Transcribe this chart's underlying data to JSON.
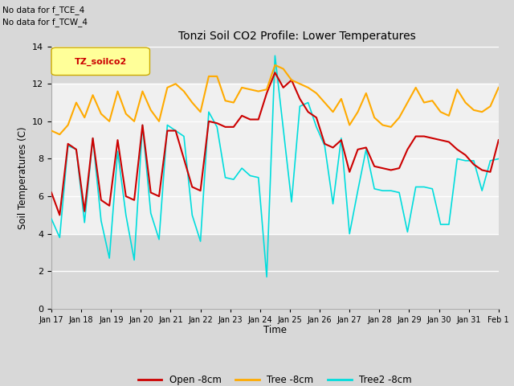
{
  "title": "Tonzi Soil CO2 Profile: Lower Temperatures",
  "ylabel": "Soil Temperatures (C)",
  "xlabel": "Time",
  "no_data_text": [
    "No data for f_TCE_4",
    "No data for f_TCW_4"
  ],
  "legend_label": "TZ_soilco2",
  "ylim": [
    0,
    14
  ],
  "yticks": [
    0,
    2,
    4,
    6,
    8,
    10,
    12,
    14
  ],
  "fig_bg_color": "#d8d8d8",
  "plot_bg_color": "#d8d8d8",
  "band_white_color": "#f0f0f0",
  "line_colors": {
    "open": "#cc0000",
    "tree": "#ffaa00",
    "tree2": "#00dddd"
  },
  "legend_lines": [
    {
      "label": "Open -8cm",
      "color": "#cc0000"
    },
    {
      "label": "Tree -8cm",
      "color": "#ffaa00"
    },
    {
      "label": "Tree2 -8cm",
      "color": "#00dddd"
    }
  ],
  "x_tick_labels": [
    "Jan 17",
    "Jan 18",
    "Jan 19",
    "Jan 20",
    "Jan 21",
    "Jan 22",
    "Jan 23",
    "Jan 24",
    "Jan 25",
    "Jan 26",
    "Jan 27",
    "Jan 28",
    "Jan 29",
    "Jan 30",
    "Jan 31",
    "Feb 1"
  ],
  "open_data": [
    6.2,
    5.0,
    8.8,
    8.5,
    5.2,
    9.1,
    5.8,
    5.5,
    9.0,
    6.0,
    5.8,
    9.8,
    6.2,
    6.0,
    9.5,
    9.5,
    8.0,
    6.5,
    6.3,
    10.0,
    9.9,
    9.7,
    9.7,
    10.3,
    10.1,
    10.1,
    11.5,
    12.6,
    11.8,
    12.2,
    11.2,
    10.5,
    10.2,
    8.8,
    8.6,
    9.0,
    7.3,
    8.5,
    8.6,
    7.6,
    7.5,
    7.4,
    7.5,
    8.5,
    9.2,
    9.2,
    9.1,
    9.0,
    8.9,
    8.5,
    8.2,
    7.7,
    7.4,
    7.3,
    9.0
  ],
  "tree_data": [
    9.5,
    9.3,
    9.8,
    11.0,
    10.2,
    11.4,
    10.4,
    10.0,
    11.6,
    10.4,
    10.0,
    11.6,
    10.6,
    10.0,
    11.8,
    12.0,
    11.6,
    11.0,
    10.5,
    12.4,
    12.4,
    11.1,
    11.0,
    11.8,
    11.7,
    11.6,
    11.7,
    13.0,
    12.8,
    12.2,
    12.0,
    11.8,
    11.5,
    11.0,
    10.5,
    11.2,
    9.8,
    10.5,
    11.5,
    10.2,
    9.8,
    9.7,
    10.2,
    11.0,
    11.8,
    11.0,
    11.1,
    10.5,
    10.3,
    11.7,
    11.0,
    10.6,
    10.5,
    10.8,
    11.8
  ],
  "tree2_data": [
    4.8,
    3.8,
    8.7,
    8.5,
    4.6,
    9.1,
    4.7,
    2.7,
    8.4,
    5.0,
    2.6,
    9.8,
    5.1,
    3.7,
    9.8,
    9.5,
    9.2,
    5.0,
    3.6,
    10.5,
    9.7,
    7.0,
    6.9,
    7.5,
    7.1,
    7.0,
    1.7,
    13.5,
    9.6,
    5.7,
    10.8,
    11.0,
    9.7,
    8.7,
    5.6,
    9.1,
    4.0,
    6.3,
    8.5,
    6.4,
    6.3,
    6.3,
    6.2,
    4.1,
    6.5,
    6.5,
    6.4,
    4.5,
    4.5,
    8.0,
    7.9,
    7.9,
    6.3,
    7.9,
    8.0
  ]
}
